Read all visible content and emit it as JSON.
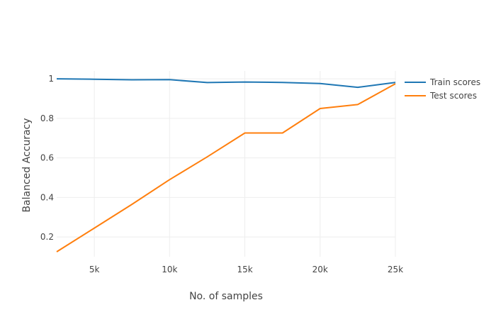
{
  "chart_data": {
    "type": "line",
    "title": "",
    "xlabel": "No. of samples",
    "ylabel": "Balanced Accuracy",
    "x": [
      2500,
      5000,
      7500,
      10000,
      12500,
      15000,
      17500,
      20000,
      22500,
      25000
    ],
    "series": [
      {
        "name": "Train scores",
        "color": "#1f77b4",
        "values": [
          1.0,
          0.998,
          0.995,
          0.996,
          0.981,
          0.984,
          0.982,
          0.976,
          0.957,
          0.982
        ]
      },
      {
        "name": "Test scores",
        "color": "#ff7f0e",
        "values": [
          0.125,
          0.245,
          0.365,
          0.49,
          0.605,
          0.726,
          0.726,
          0.85,
          0.87,
          0.975
        ]
      }
    ],
    "xlim": [
      2500,
      25000
    ],
    "ylim": [
      0.1,
      1.04
    ],
    "x_ticks": [
      {
        "value": 5000,
        "label": "5k"
      },
      {
        "value": 10000,
        "label": "10k"
      },
      {
        "value": 15000,
        "label": "15k"
      },
      {
        "value": 20000,
        "label": "20k"
      },
      {
        "value": 25000,
        "label": "25k"
      }
    ],
    "y_ticks": [
      {
        "value": 0.2,
        "label": "0.2"
      },
      {
        "value": 0.4,
        "label": "0.4"
      },
      {
        "value": 0.6,
        "label": "0.6"
      },
      {
        "value": 0.8,
        "label": "0.8"
      },
      {
        "value": 1.0,
        "label": "1"
      }
    ],
    "grid": true,
    "legend_position": "top-right",
    "colors": {
      "grid": "#eeeeee",
      "text": "#444444"
    }
  }
}
